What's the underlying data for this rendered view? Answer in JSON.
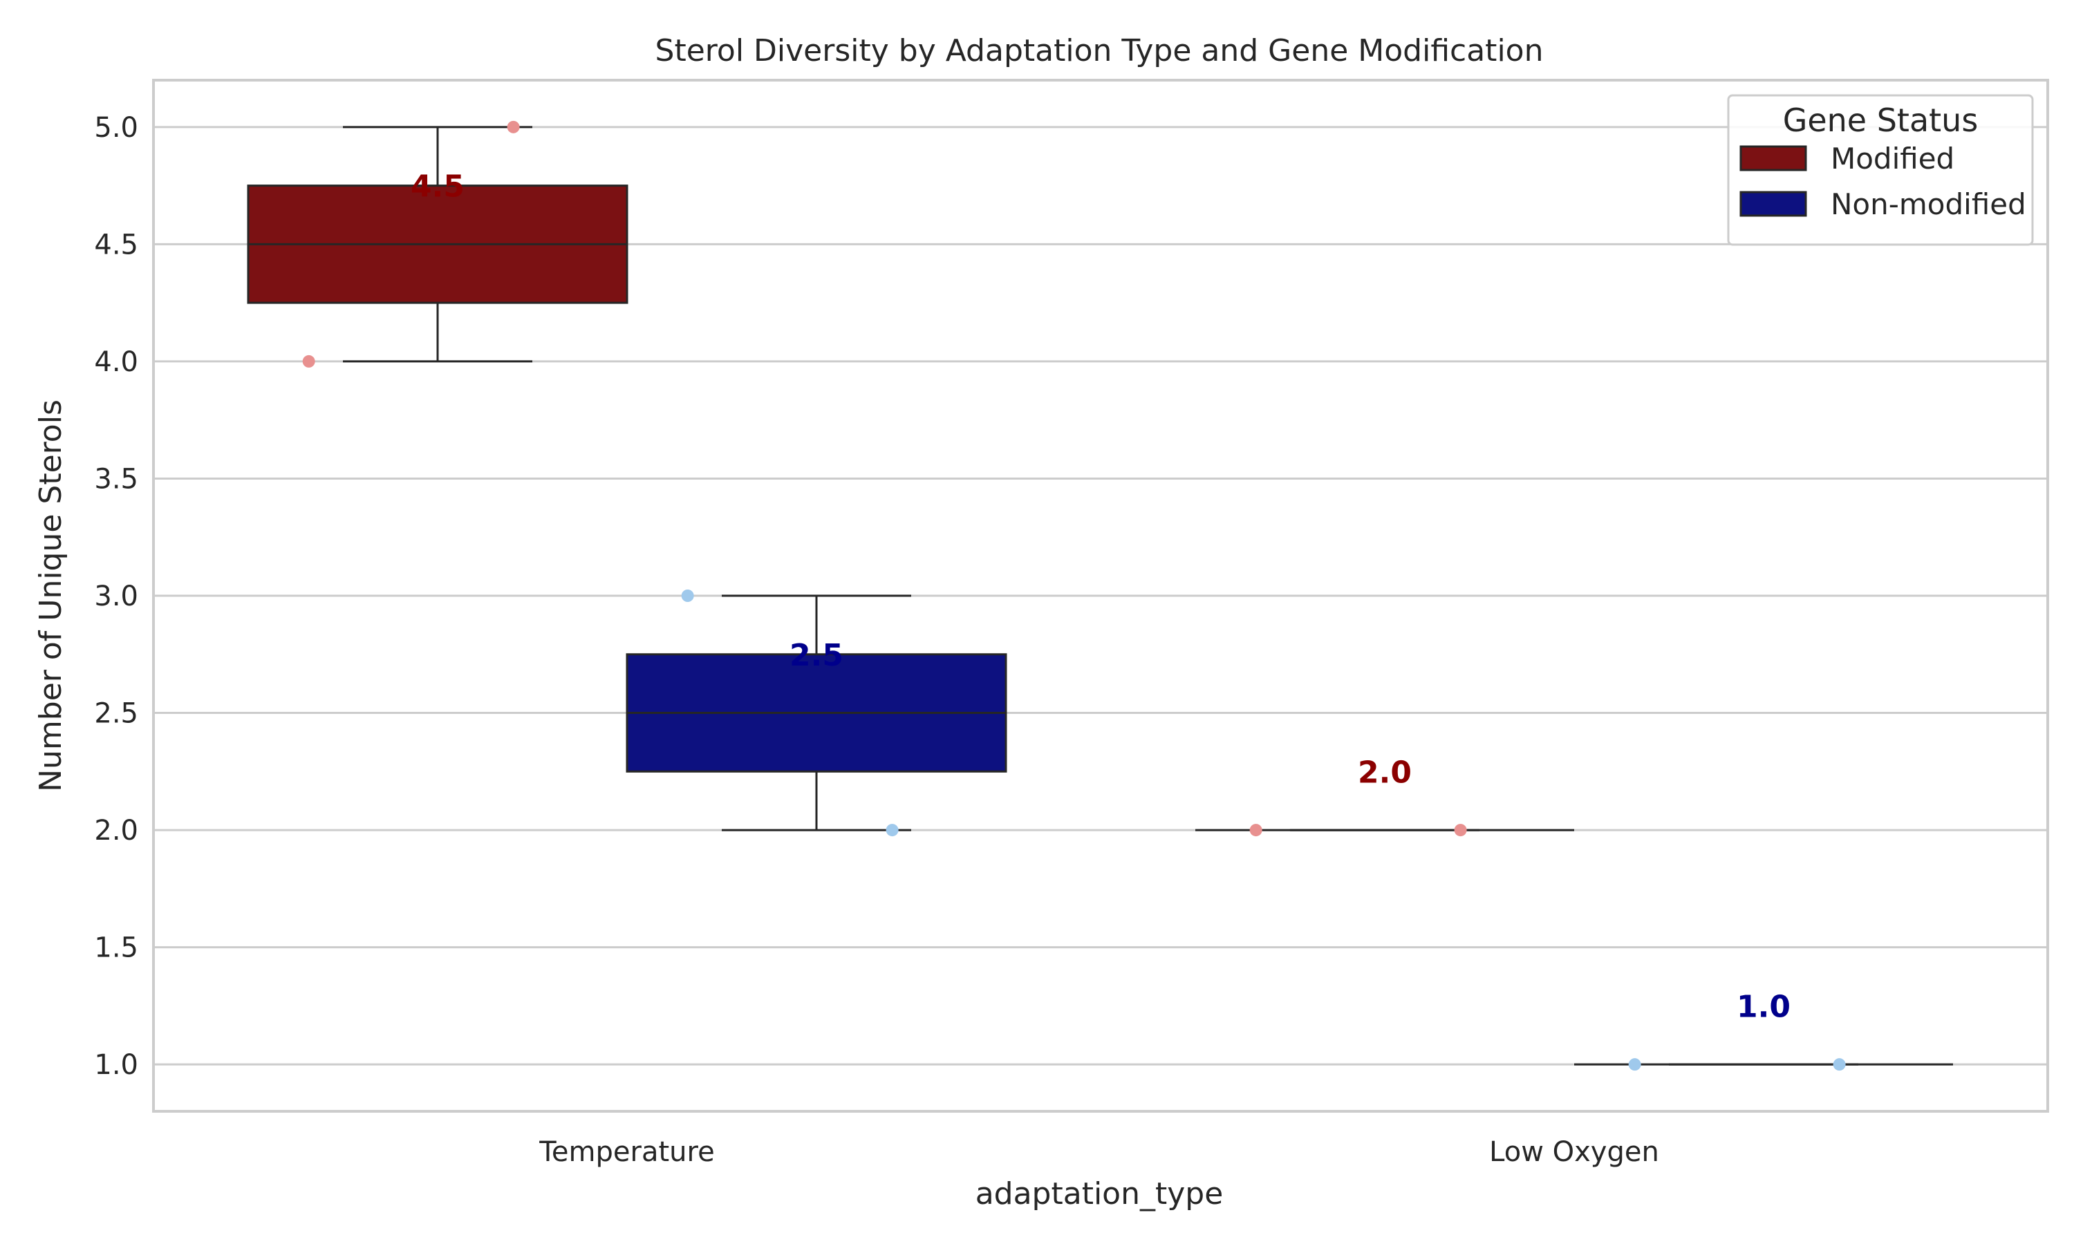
{
  "chart_data": {
    "type": "box",
    "title": "Sterol Diversity by Adaptation Type and Gene Modification",
    "xlabel": "adaptation_type",
    "ylabel": "Number of Unique Sterols",
    "categories": [
      "Temperature",
      "Low Oxygen"
    ],
    "ylim": [
      0.8,
      5.2
    ],
    "yticks": [
      "1.0",
      "1.5",
      "2.0",
      "2.5",
      "3.0",
      "3.5",
      "4.0",
      "4.5",
      "5.0"
    ],
    "grid": true,
    "legend": {
      "title": "Gene Status",
      "placement": "top-right"
    },
    "series": [
      {
        "name": "Modified",
        "color": "#7b1113",
        "point_color": "#e8908f",
        "label_color": "#8b0000",
        "boxes": [
          {
            "category": "Temperature",
            "min": 4.0,
            "q1": 4.25,
            "median": 4.5,
            "q3": 4.75,
            "max": 5.0,
            "points": [
              4.0,
              5.0
            ],
            "label": "4.5"
          },
          {
            "category": "Low Oxygen",
            "min": 2.0,
            "q1": 2.0,
            "median": 2.0,
            "q3": 2.0,
            "max": 2.0,
            "points": [
              2.0,
              2.0
            ],
            "label": "2.0"
          }
        ]
      },
      {
        "name": "Non-modified",
        "color": "#0d1180",
        "point_color": "#9fc9ec",
        "label_color": "#00008b",
        "boxes": [
          {
            "category": "Temperature",
            "min": 2.0,
            "q1": 2.25,
            "median": 2.5,
            "q3": 2.75,
            "max": 3.0,
            "points": [
              3.0,
              2.0
            ],
            "label": "2.5"
          },
          {
            "category": "Low Oxygen",
            "min": 1.0,
            "q1": 1.0,
            "median": 1.0,
            "q3": 1.0,
            "max": 1.0,
            "points": [
              1.0,
              1.0
            ],
            "label": "1.0"
          }
        ]
      }
    ]
  }
}
